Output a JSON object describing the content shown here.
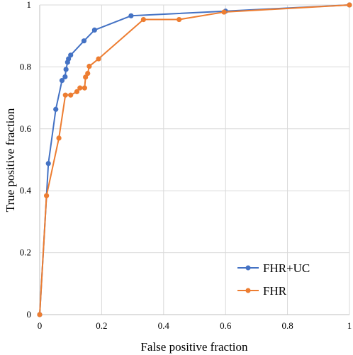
{
  "chart_data": {
    "type": "line",
    "xlabel": "False positive fraction",
    "ylabel": "True positive fraction",
    "xlim": [
      0,
      1
    ],
    "ylim": [
      0,
      1
    ],
    "x_ticks": [
      "0",
      "0.2",
      "0.4",
      "0.6",
      "0.8",
      "1"
    ],
    "y_ticks": [
      "0",
      "0.2",
      "0.4",
      "0.6",
      "0.8",
      "1"
    ],
    "grid": true,
    "legend_position": "bottom-right",
    "series": [
      {
        "name": "FHR+UC",
        "color": "#4472C4",
        "points": [
          [
            0,
            0
          ],
          [
            0.028,
            0.488
          ],
          [
            0.052,
            0.663
          ],
          [
            0.072,
            0.756
          ],
          [
            0.082,
            0.768
          ],
          [
            0.085,
            0.792
          ],
          [
            0.09,
            0.815
          ],
          [
            0.093,
            0.826
          ],
          [
            0.1,
            0.838
          ],
          [
            0.143,
            0.884
          ],
          [
            0.177,
            0.919
          ],
          [
            0.295,
            0.965
          ],
          [
            0.6,
            0.98
          ],
          [
            1,
            1
          ]
        ]
      },
      {
        "name": "FHR",
        "color": "#ED7D31",
        "points": [
          [
            0,
            0
          ],
          [
            0.022,
            0.384
          ],
          [
            0.062,
            0.57
          ],
          [
            0.083,
            0.709
          ],
          [
            0.1,
            0.709
          ],
          [
            0.12,
            0.72
          ],
          [
            0.13,
            0.732
          ],
          [
            0.145,
            0.732
          ],
          [
            0.148,
            0.767
          ],
          [
            0.155,
            0.779
          ],
          [
            0.16,
            0.802
          ],
          [
            0.19,
            0.826
          ],
          [
            0.335,
            0.953
          ],
          [
            0.45,
            0.953
          ],
          [
            0.595,
            0.977
          ],
          [
            1,
            1
          ]
        ]
      }
    ]
  }
}
